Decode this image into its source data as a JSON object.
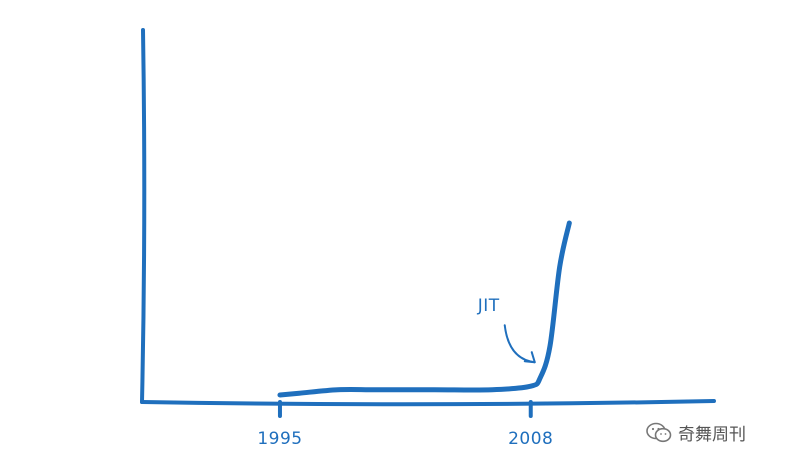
{
  "chart_data": {
    "type": "line",
    "title": "",
    "xlabel": "",
    "ylabel": "",
    "x_ticks": [
      "1995",
      "2008"
    ],
    "x": [
      1995,
      1996,
      1998,
      2000,
      2003,
      2006,
      2008,
      2008.5,
      2009,
      2009.5,
      2010
    ],
    "values": [
      2,
      3,
      5,
      5,
      5,
      5,
      7,
      12,
      30,
      75,
      100
    ],
    "xlim": [
      1987.9,
      2017.5
    ],
    "ylim": [
      -2,
      210
    ],
    "annotations": [
      {
        "text": "JIT",
        "x": 2008,
        "y": 7
      }
    ],
    "colors": {
      "ink": "#1f6fbd"
    },
    "grid": false,
    "legend": "none"
  },
  "watermark": {
    "icon": "wechat-icon",
    "text": "奇舞周刊"
  }
}
